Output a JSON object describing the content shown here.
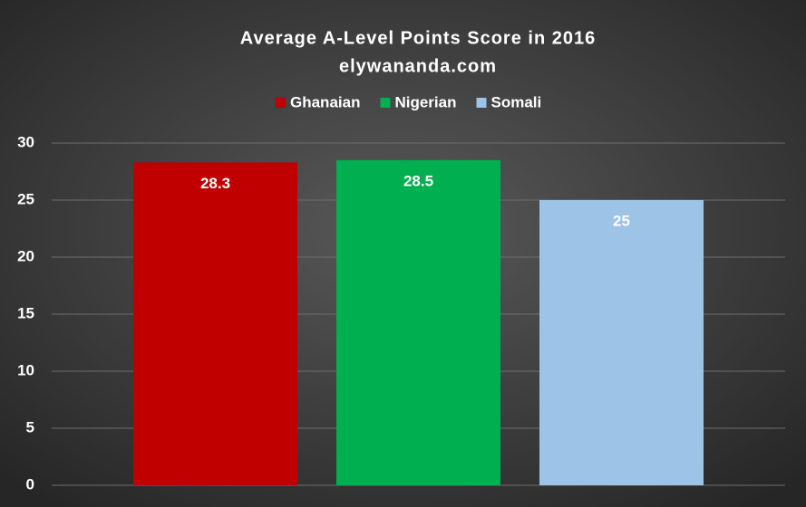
{
  "chart_data": {
    "type": "bar",
    "title": "Average A-Level Points Score in 2016",
    "subtitle": "elywananda.com",
    "categories": [
      null
    ],
    "series": [
      {
        "name": "Ghanaian",
        "color": "#c00000",
        "values": [
          28.3
        ]
      },
      {
        "name": "Nigerian",
        "color": "#00b050",
        "values": [
          28.5
        ]
      },
      {
        "name": "Somali",
        "color": "#9dc3e6",
        "values": [
          25
        ]
      }
    ],
    "ylim": [
      0,
      30
    ],
    "yticks": [
      0,
      5,
      10,
      15,
      20,
      25,
      30
    ],
    "grid": true,
    "legend": "top"
  }
}
